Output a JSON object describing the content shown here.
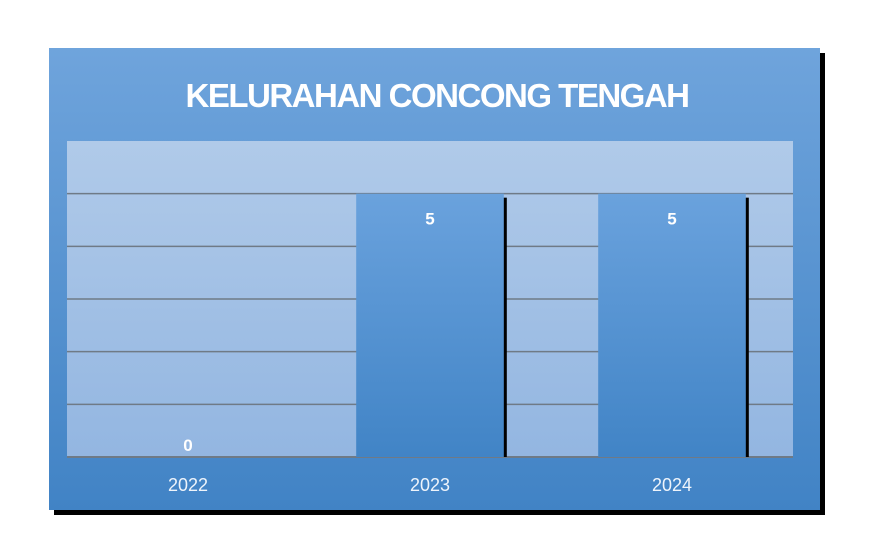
{
  "chart_data": {
    "type": "bar",
    "title": "KELURAHAN CONCONG TENGAH",
    "categories": [
      "2022",
      "2023",
      "2024"
    ],
    "values": [
      0,
      5,
      5
    ],
    "data_labels": [
      "0",
      "5",
      "5"
    ],
    "xlabel": "",
    "ylabel": "",
    "ylim": [
      0,
      6
    ],
    "grid": true,
    "legend": "none",
    "colors": {
      "card_top": "#6fa4dc",
      "card_bottom": "#4183c5",
      "plot_top": "#b0cae9",
      "plot_bottom": "#93b6e1",
      "bar_top": "#6aa2dd",
      "bar_bottom": "#4184c6",
      "gridline": "#6f7a86",
      "text": "#ffffff"
    }
  }
}
